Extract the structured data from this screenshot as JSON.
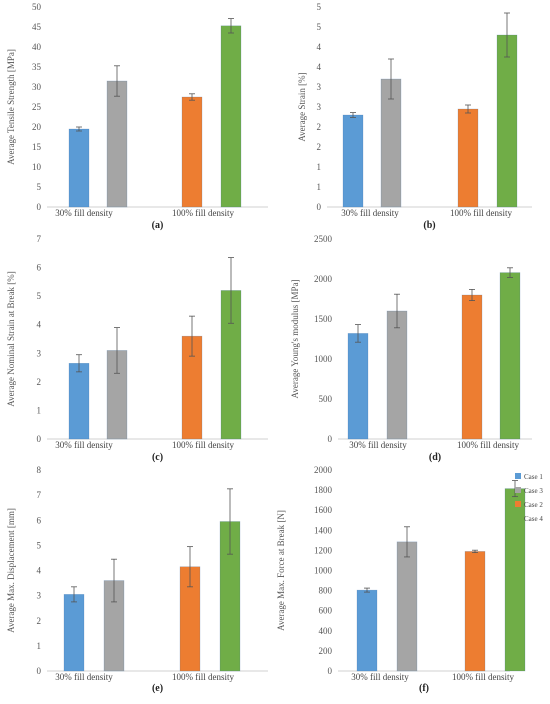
{
  "legend": {
    "entries": [
      {
        "label": "Case 1",
        "color": "#5b9bd5"
      },
      {
        "label": "Case 3",
        "color": "#a5a5a5"
      },
      {
        "label": "Case 2",
        "color": "#ed7d31"
      },
      {
        "label": "Case 4",
        "color": "#70ad47"
      }
    ]
  },
  "chart_data": [
    {
      "type": "bar",
      "panel": "(a)",
      "categories": [
        "30% fill density",
        "100%  fill density"
      ],
      "series": [
        {
          "name": "Case 1",
          "color": "#5b9bd5",
          "group": 0,
          "value": 19.5,
          "error": 0.5
        },
        {
          "name": "Case 3",
          "color": "#a5a5a5",
          "group": 0,
          "value": 31.5,
          "error": 3.8
        },
        {
          "name": "Case 2",
          "color": "#ed7d31",
          "group": 1,
          "value": 27.5,
          "error": 0.8
        },
        {
          "name": "Case 4",
          "color": "#70ad47",
          "group": 1,
          "value": 45.3,
          "error": 1.8
        }
      ],
      "ylabel": "Average Tensile Strength [MPa]",
      "ylim": [
        0,
        50
      ],
      "yticks": [
        "0",
        "5",
        "10",
        "15",
        "20",
        "25",
        "30",
        "35",
        "40",
        "45",
        "50"
      ]
    },
    {
      "type": "bar",
      "panel": "(b)",
      "categories": [
        "30% fill density",
        "100%  fill density"
      ],
      "series": [
        {
          "name": "Case 1",
          "color": "#5b9bd5",
          "group": 0,
          "value": 2.3,
          "error": 0.06
        },
        {
          "name": "Case 3",
          "color": "#a5a5a5",
          "group": 0,
          "value": 3.2,
          "error": 0.5
        },
        {
          "name": "Case 2",
          "color": "#ed7d31",
          "group": 1,
          "value": 2.45,
          "error": 0.1
        },
        {
          "name": "Case 4",
          "color": "#70ad47",
          "group": 1,
          "value": 4.3,
          "error": 0.55
        }
      ],
      "ylabel": "Average Strain [%]",
      "ylim": [
        0,
        5
      ],
      "yticks": [
        "0",
        "1",
        "1",
        "2",
        "2",
        "3",
        "3",
        "4",
        "4",
        "5",
        "5"
      ]
    },
    {
      "type": "bar",
      "panel": "(c)",
      "categories": [
        "30% fill density",
        "100%  fill density"
      ],
      "series": [
        {
          "name": "Case 1",
          "color": "#5b9bd5",
          "group": 0,
          "value": 2.65,
          "error": 0.3
        },
        {
          "name": "Case 3",
          "color": "#a5a5a5",
          "group": 0,
          "value": 3.1,
          "error": 0.8
        },
        {
          "name": "Case 2",
          "color": "#ed7d31",
          "group": 1,
          "value": 3.6,
          "error": 0.7
        },
        {
          "name": "Case 4",
          "color": "#70ad47",
          "group": 1,
          "value": 5.2,
          "error": 1.15
        }
      ],
      "ylabel": "Average Nominal Strain at Break [%]",
      "ylim": [
        0,
        7
      ],
      "yticks": [
        "0",
        "1",
        "2",
        "3",
        "4",
        "5",
        "6",
        "7"
      ]
    },
    {
      "type": "bar",
      "panel": "(d)",
      "categories": [
        "30% fill density",
        "100%  fill density"
      ],
      "series": [
        {
          "name": "Case 1",
          "color": "#5b9bd5",
          "group": 0,
          "value": 1320,
          "error": 110
        },
        {
          "name": "Case 3",
          "color": "#a5a5a5",
          "group": 0,
          "value": 1600,
          "error": 210
        },
        {
          "name": "Case 2",
          "color": "#ed7d31",
          "group": 1,
          "value": 1800,
          "error": 70
        },
        {
          "name": "Case 4",
          "color": "#70ad47",
          "group": 1,
          "value": 2080,
          "error": 60
        }
      ],
      "ylabel": "Average Young's modulus [MPa]",
      "ylim": [
        0,
        2500
      ],
      "yticks": [
        "0",
        "500",
        "1000",
        "1500",
        "2000",
        "2500"
      ]
    },
    {
      "type": "bar",
      "panel": "(e)",
      "categories": [
        "30% fill density",
        "100%  fill density"
      ],
      "series": [
        {
          "name": "Case 1",
          "color": "#5b9bd5",
          "group": 0,
          "value": 3.05,
          "error": 0.3
        },
        {
          "name": "Case 3",
          "color": "#a5a5a5",
          "group": 0,
          "value": 3.6,
          "error": 0.85
        },
        {
          "name": "Case 2",
          "color": "#ed7d31",
          "group": 1,
          "value": 4.15,
          "error": 0.8
        },
        {
          "name": "Case 4",
          "color": "#70ad47",
          "group": 1,
          "value": 5.95,
          "error": 1.3
        }
      ],
      "ylabel": "Average Max. Displacement [mm]",
      "ylim": [
        0,
        8
      ],
      "yticks": [
        "0",
        "1",
        "2",
        "3",
        "4",
        "5",
        "6",
        "7",
        "8"
      ]
    },
    {
      "type": "bar",
      "panel": "(f)",
      "categories": [
        "30% fill density",
        "100%  fill density"
      ],
      "series": [
        {
          "name": "Case 1",
          "color": "#5b9bd5",
          "group": 0,
          "value": 805,
          "error": 20
        },
        {
          "name": "Case 3",
          "color": "#a5a5a5",
          "group": 0,
          "value": 1285,
          "error": 150
        },
        {
          "name": "Case 2",
          "color": "#ed7d31",
          "group": 1,
          "value": 1190,
          "error": 12
        },
        {
          "name": "Case 4",
          "color": "#70ad47",
          "group": 1,
          "value": 1815,
          "error": 80
        }
      ],
      "ylabel": "Average Max. Force at Break [N]",
      "ylim": [
        0,
        2000
      ],
      "yticks": [
        "0",
        "200",
        "400",
        "600",
        "800",
        "1000",
        "1200",
        "1400",
        "1600",
        "1800",
        "2000"
      ],
      "legend": "right"
    }
  ]
}
